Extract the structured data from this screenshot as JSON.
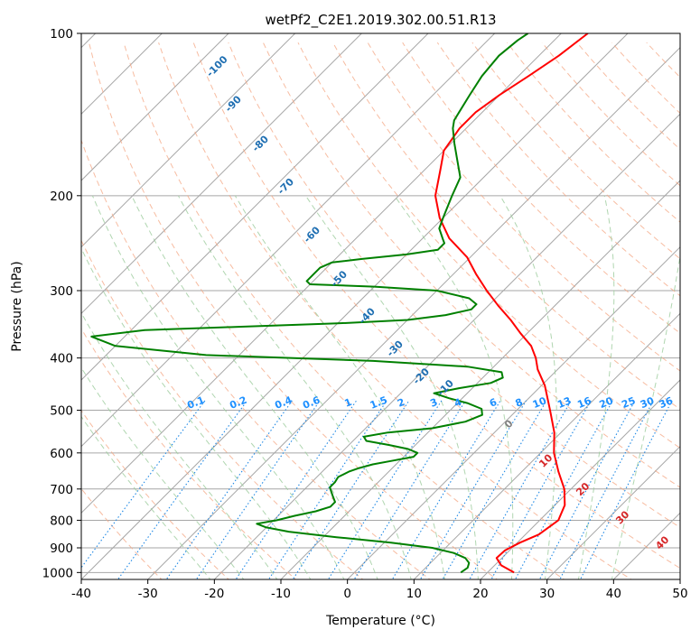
{
  "chart_data": {
    "type": "line",
    "title": "wetPf2_C2E1.2019.302.00.51.R13",
    "xlabel": "Temperature (°C)",
    "ylabel": "Pressure (hPa)",
    "xlim": [
      -40,
      50
    ],
    "ylim": [
      1030,
      100
    ],
    "y_scale": "log",
    "grid": true,
    "x_ticks": [
      -40,
      -30,
      -20,
      -10,
      0,
      10,
      20,
      30,
      40,
      50
    ],
    "y_ticks": [
      100,
      200,
      300,
      400,
      500,
      600,
      700,
      800,
      900,
      1000
    ],
    "skew_degrees": 45,
    "series": [
      {
        "color": "#ff0000",
        "points": [
          {
            "p": 1000,
            "t": 24
          },
          {
            "p": 970,
            "t": 21
          },
          {
            "p": 940,
            "t": 19.2
          },
          {
            "p": 910,
            "t": 19.3
          },
          {
            "p": 880,
            "t": 20.4
          },
          {
            "p": 850,
            "t": 22
          },
          {
            "p": 800,
            "t": 22.8
          },
          {
            "p": 750,
            "t": 21.5
          },
          {
            "p": 700,
            "t": 19
          },
          {
            "p": 650,
            "t": 15.5
          },
          {
            "p": 600,
            "t": 12
          },
          {
            "p": 550,
            "t": 9
          },
          {
            "p": 500,
            "t": 5
          },
          {
            "p": 450,
            "t": 0.5
          },
          {
            "p": 420,
            "t": -3
          },
          {
            "p": 400,
            "t": -5
          },
          {
            "p": 380,
            "t": -7.5
          },
          {
            "p": 360,
            "t": -11
          },
          {
            "p": 340,
            "t": -14.5
          },
          {
            "p": 320,
            "t": -18.5
          },
          {
            "p": 300,
            "t": -22.5
          },
          {
            "p": 280,
            "t": -26.5
          },
          {
            "p": 260,
            "t": -30.5
          },
          {
            "p": 240,
            "t": -36
          },
          {
            "p": 220,
            "t": -40.5
          },
          {
            "p": 200,
            "t": -44.5
          },
          {
            "p": 180,
            "t": -47.5
          },
          {
            "p": 165,
            "t": -50
          },
          {
            "p": 150,
            "t": -51
          },
          {
            "p": 140,
            "t": -51
          },
          {
            "p": 130,
            "t": -50
          },
          {
            "p": 120,
            "t": -48.5
          },
          {
            "p": 110,
            "t": -47
          },
          {
            "p": 100,
            "t": -46
          }
        ]
      },
      {
        "color": "#008000",
        "points": [
          {
            "p": 1000,
            "t": 16
          },
          {
            "p": 980,
            "t": 16.3
          },
          {
            "p": 960,
            "t": 15.8
          },
          {
            "p": 940,
            "t": 14.5
          },
          {
            "p": 920,
            "t": 12
          },
          {
            "p": 900,
            "t": 8
          },
          {
            "p": 880,
            "t": 1
          },
          {
            "p": 860,
            "t": -8
          },
          {
            "p": 840,
            "t": -16
          },
          {
            "p": 825,
            "t": -20
          },
          {
            "p": 812,
            "t": -22
          },
          {
            "p": 800,
            "t": -19.5
          },
          {
            "p": 785,
            "t": -17.5
          },
          {
            "p": 770,
            "t": -15
          },
          {
            "p": 755,
            "t": -13.5
          },
          {
            "p": 740,
            "t": -13.5
          },
          {
            "p": 725,
            "t": -14.5
          },
          {
            "p": 710,
            "t": -15.5
          },
          {
            "p": 695,
            "t": -16.5
          },
          {
            "p": 680,
            "t": -16.5
          },
          {
            "p": 665,
            "t": -16.8
          },
          {
            "p": 650,
            "t": -16
          },
          {
            "p": 640,
            "t": -15
          },
          {
            "p": 630,
            "t": -13.5
          },
          {
            "p": 620,
            "t": -11
          },
          {
            "p": 610,
            "t": -8.5
          },
          {
            "p": 600,
            "t": -8.5
          },
          {
            "p": 590,
            "t": -10.5
          },
          {
            "p": 580,
            "t": -14
          },
          {
            "p": 570,
            "t": -18
          },
          {
            "p": 560,
            "t": -19
          },
          {
            "p": 550,
            "t": -16
          },
          {
            "p": 540,
            "t": -10
          },
          {
            "p": 525,
            "t": -6
          },
          {
            "p": 510,
            "t": -4.5
          },
          {
            "p": 497,
            "t": -5.5
          },
          {
            "p": 485,
            "t": -8.5
          },
          {
            "p": 475,
            "t": -12
          },
          {
            "p": 465,
            "t": -15
          },
          {
            "p": 455,
            "t": -12
          },
          {
            "p": 445,
            "t": -8
          },
          {
            "p": 435,
            "t": -7
          },
          {
            "p": 425,
            "t": -8
          },
          {
            "p": 415,
            "t": -14
          },
          {
            "p": 405,
            "t": -29
          },
          {
            "p": 395,
            "t": -55
          },
          {
            "p": 380,
            "t": -70
          },
          {
            "p": 365,
            "t": -75
          },
          {
            "p": 355,
            "t": -68
          },
          {
            "p": 350,
            "t": -54
          },
          {
            "p": 345,
            "t": -40
          },
          {
            "p": 340,
            "t": -30
          },
          {
            "p": 333,
            "t": -25
          },
          {
            "p": 325,
            "t": -22
          },
          {
            "p": 318,
            "t": -22
          },
          {
            "p": 310,
            "t": -24
          },
          {
            "p": 300,
            "t": -30
          },
          {
            "p": 295,
            "t": -40
          },
          {
            "p": 292,
            "t": -50
          },
          {
            "p": 288,
            "t": -51
          },
          {
            "p": 280,
            "t": -51
          },
          {
            "p": 272,
            "t": -51
          },
          {
            "p": 266,
            "t": -50
          },
          {
            "p": 262,
            "t": -46
          },
          {
            "p": 257,
            "t": -40
          },
          {
            "p": 252,
            "t": -36
          },
          {
            "p": 245,
            "t": -36
          },
          {
            "p": 240,
            "t": -37
          },
          {
            "p": 230,
            "t": -39
          },
          {
            "p": 220,
            "t": -40
          },
          {
            "p": 200,
            "t": -42
          },
          {
            "p": 185,
            "t": -43.5
          },
          {
            "p": 170,
            "t": -47
          },
          {
            "p": 160,
            "t": -49.5
          },
          {
            "p": 150,
            "t": -52
          },
          {
            "p": 145,
            "t": -53
          },
          {
            "p": 140,
            "t": -53.5
          },
          {
            "p": 130,
            "t": -54.5
          },
          {
            "p": 120,
            "t": -55.5
          },
          {
            "p": 110,
            "t": -56
          },
          {
            "p": 103,
            "t": -55.5
          },
          {
            "p": 100,
            "t": -55
          }
        ]
      }
    ],
    "dry_adiabat_labels": [
      "-100",
      "-90",
      "-80",
      "-70",
      "-60",
      "-50",
      "-40",
      "-30",
      "-20",
      "-10"
    ],
    "mixing_ratio_labels": [
      "0.1",
      "0.2",
      "0.4",
      "0.6",
      "1",
      "1.5",
      "2",
      "3",
      "4",
      "6",
      "8",
      "10",
      "13",
      "16",
      "20",
      "25",
      "30",
      "36"
    ],
    "isotherm_labels": [
      "0",
      "10",
      "20",
      "30",
      "40"
    ],
    "colors": {
      "temperature": "#ff0000",
      "dewpoint": "#008000",
      "isotherm": "#a6a6a6",
      "dry_adiabat": "#f4a582",
      "moist_adiabat": "#9ccc9c",
      "mixing_ratio": "#1e88e5",
      "dry_adiabat_label": "#1f6fb2",
      "mixing_ratio_label": "#1e90ff",
      "isotherm_label_zero": "#808080",
      "isotherm_label": "#d62728",
      "extra_adiabat": "#d2b48c"
    }
  }
}
